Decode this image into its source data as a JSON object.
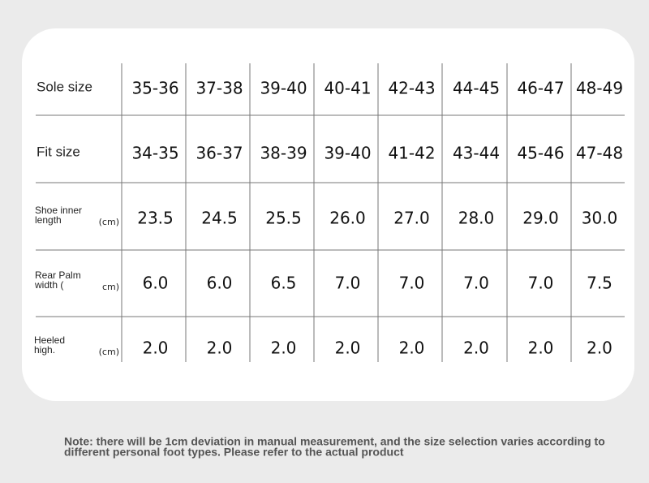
{
  "table": {
    "rows": [
      {
        "label": [
          "Sole size"
        ],
        "cells": [
          "35-36",
          "37-38",
          "39-40",
          "40-41",
          "42-43",
          "44-45",
          "46-47",
          "48-49"
        ]
      },
      {
        "label": [
          "Fit size"
        ],
        "cells": [
          "34-35",
          "36-37",
          "38-39",
          "39-40",
          "41-42",
          "43-44",
          "45-46",
          "47-48"
        ]
      },
      {
        "label": [
          "Shoe inner",
          "length"
        ],
        "unit": "(cm)",
        "cells": [
          "23.5",
          "24.5",
          "25.5",
          "26.0",
          "27.0",
          "28.0",
          "29.0",
          "30.0"
        ]
      },
      {
        "label": [
          "Rear Palm",
          "width ("
        ],
        "unit": "cm)",
        "cells": [
          "6.0",
          "6.0",
          "6.5",
          "7.0",
          "7.0",
          "7.0",
          "7.0",
          "7.5"
        ]
      },
      {
        "label": [
          "Heeled",
          "high."
        ],
        "unit": "(cm)",
        "cells": [
          "2.0",
          "2.0",
          "2.0",
          "2.0",
          "2.0",
          "2.0",
          "2.0",
          "2.0"
        ]
      }
    ]
  },
  "note": {
    "lines": [
      "Note: there will be 1cm deviation in manual measurement, and the size selection varies according to",
      "different personal foot types. Please refer to the actual product"
    ]
  }
}
